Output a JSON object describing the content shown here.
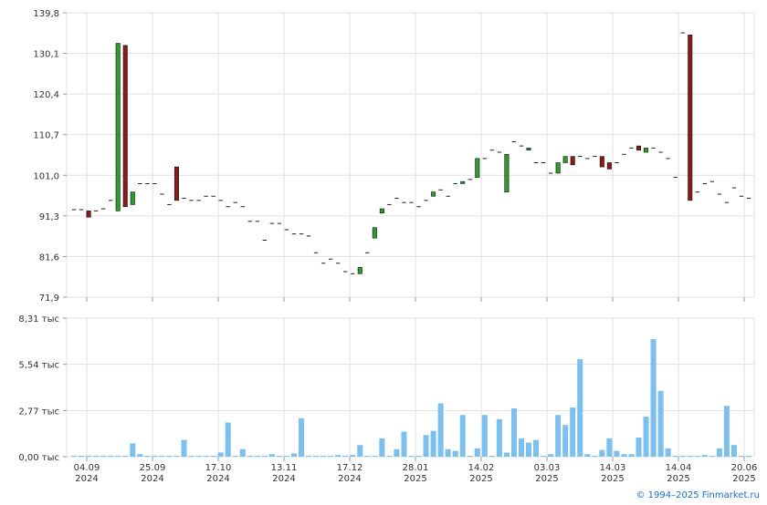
{
  "chart_data": {
    "type": "ohlc+volume",
    "price": {
      "y_ticks": [
        "139,8",
        "130,1",
        "120,4",
        "110,7",
        "101,0",
        "91,3",
        "81,6",
        "71,9"
      ],
      "ylim": [
        71.9,
        139.8
      ],
      "grid": true,
      "bars": [
        {
          "o": 92.8,
          "c": 92.8
        },
        {
          "o": 92.8,
          "c": 92.8
        },
        {
          "o": 92.5,
          "c": 91.0
        },
        {
          "o": 92.5,
          "c": 92.5
        },
        {
          "o": 93.0,
          "c": 93.0
        },
        {
          "o": 95.0,
          "c": 95.0
        },
        {
          "o": 92.5,
          "c": 132.5
        },
        {
          "o": 132.0,
          "c": 93.5
        },
        {
          "o": 94.0,
          "c": 97.0
        },
        {
          "o": 99.0,
          "c": 99.0
        },
        {
          "o": 99.0,
          "c": 99.0
        },
        {
          "o": 99.0,
          "c": 99.0
        },
        {
          "o": 96.5,
          "c": 96.5
        },
        {
          "o": 94.0,
          "c": 94.0
        },
        {
          "o": 103.0,
          "c": 95.0
        },
        {
          "o": 95.5,
          "c": 95.5
        },
        {
          "o": 95.0,
          "c": 95.0
        },
        {
          "o": 95.0,
          "c": 95.0
        },
        {
          "o": 96.0,
          "c": 96.0
        },
        {
          "o": 96.0,
          "c": 96.0
        },
        {
          "o": 95.0,
          "c": 95.0
        },
        {
          "o": 93.5,
          "c": 93.5
        },
        {
          "o": 94.5,
          "c": 94.5
        },
        {
          "o": 93.5,
          "c": 93.5
        },
        {
          "o": 90.0,
          "c": 90.0
        },
        {
          "o": 90.0,
          "c": 90.0
        },
        {
          "o": 85.5,
          "c": 85.5
        },
        {
          "o": 89.5,
          "c": 89.5
        },
        {
          "o": 89.5,
          "c": 89.5
        },
        {
          "o": 88.0,
          "c": 88.0
        },
        {
          "o": 87.0,
          "c": 87.0
        },
        {
          "o": 87.0,
          "c": 87.0
        },
        {
          "o": 86.5,
          "c": 86.5
        },
        {
          "o": 82.5,
          "c": 82.5
        },
        {
          "o": 80.0,
          "c": 80.0
        },
        {
          "o": 81.0,
          "c": 81.0
        },
        {
          "o": 80.0,
          "c": 80.0
        },
        {
          "o": 78.0,
          "c": 78.0
        },
        {
          "o": 77.5,
          "c": 77.5
        },
        {
          "o": 77.5,
          "c": 79.0
        },
        {
          "o": 82.5,
          "c": 82.5
        },
        {
          "o": 86.0,
          "c": 88.5
        },
        {
          "o": 92.0,
          "c": 93.0
        },
        {
          "o": 94.0,
          "c": 94.0
        },
        {
          "o": 95.5,
          "c": 95.5
        },
        {
          "o": 94.5,
          "c": 94.5
        },
        {
          "o": 94.5,
          "c": 94.5
        },
        {
          "o": 93.5,
          "c": 93.5
        },
        {
          "o": 95.0,
          "c": 95.0
        },
        {
          "o": 96.0,
          "c": 97.0
        },
        {
          "o": 97.5,
          "c": 97.5
        },
        {
          "o": 96.0,
          "c": 96.0
        },
        {
          "o": 99.0,
          "c": 99.0
        },
        {
          "o": 99.0,
          "c": 99.5
        },
        {
          "o": 100.0,
          "c": 100.0
        },
        {
          "o": 100.5,
          "c": 105.0
        },
        {
          "o": 105.0,
          "c": 105.0
        },
        {
          "o": 107.0,
          "c": 107.0
        },
        {
          "o": 106.5,
          "c": 106.5
        },
        {
          "o": 97.0,
          "c": 106.0
        },
        {
          "o": 109.0,
          "c": 109.0
        },
        {
          "o": 108.0,
          "c": 108.0
        },
        {
          "o": 107.0,
          "c": 107.5
        },
        {
          "o": 104.0,
          "c": 104.0
        },
        {
          "o": 104.0,
          "c": 104.0
        },
        {
          "o": 101.5,
          "c": 101.5
        },
        {
          "o": 101.5,
          "c": 104.0
        },
        {
          "o": 104.0,
          "c": 105.5
        },
        {
          "o": 105.5,
          "c": 103.5
        },
        {
          "o": 105.5,
          "c": 105.5
        },
        {
          "o": 105.0,
          "c": 105.0
        },
        {
          "o": 105.5,
          "c": 105.5
        },
        {
          "o": 105.5,
          "c": 103.0
        },
        {
          "o": 104.0,
          "c": 102.5
        },
        {
          "o": 104.0,
          "c": 104.0
        },
        {
          "o": 106.0,
          "c": 106.0
        },
        {
          "o": 107.5,
          "c": 107.5
        },
        {
          "o": 108.0,
          "c": 107.0
        },
        {
          "o": 106.5,
          "c": 107.5
        },
        {
          "o": 107.5,
          "c": 107.5
        },
        {
          "o": 106.5,
          "c": 106.5
        },
        {
          "o": 105.0,
          "c": 105.0
        },
        {
          "o": 100.5,
          "c": 100.5
        },
        {
          "o": 135.0,
          "c": 135.0
        },
        {
          "o": 134.5,
          "c": 95.0
        },
        {
          "o": 97.0,
          "c": 97.0
        },
        {
          "o": 99.0,
          "c": 99.0
        },
        {
          "o": 99.5,
          "c": 99.5
        },
        {
          "o": 96.5,
          "c": 96.5
        },
        {
          "o": 94.5,
          "c": 94.5
        },
        {
          "o": 98.0,
          "c": 98.0
        },
        {
          "o": 96.0,
          "c": 96.0
        },
        {
          "o": 95.5,
          "c": 95.5
        }
      ]
    },
    "volume": {
      "y_ticks": [
        "8,31 тыс",
        "5,54 тыс",
        "2,77 тыс",
        "0,00 тыс"
      ],
      "ylim": [
        0,
        8.31
      ],
      "unit": "тыс",
      "values": [
        0.05,
        0.05,
        0.05,
        0.05,
        0.05,
        0.05,
        0.05,
        0.05,
        0.8,
        0.15,
        0.05,
        0.05,
        0.05,
        0.05,
        0.05,
        1.0,
        0.05,
        0.05,
        0.05,
        0.05,
        0.25,
        2.05,
        0.05,
        0.45,
        0.05,
        0.05,
        0.05,
        0.15,
        0.05,
        0.05,
        0.2,
        2.3,
        0.05,
        0.05,
        0.05,
        0.05,
        0.1,
        0.05,
        0.1,
        0.7,
        0.05,
        0.05,
        1.1,
        0.05,
        0.45,
        1.5,
        0.05,
        0.05,
        1.3,
        1.55,
        3.2,
        0.45,
        0.35,
        2.5,
        0.05,
        0.5,
        2.5,
        0.05,
        2.25,
        0.25,
        2.9,
        1.1,
        0.85,
        1.0,
        0.05,
        0.15,
        2.5,
        1.9,
        2.95,
        5.85,
        0.15,
        0.05,
        0.4,
        1.1,
        0.35,
        0.15,
        0.15,
        1.15,
        2.4,
        7.05,
        3.95,
        0.5,
        0.05,
        0.05,
        0.05,
        0.05,
        0.1,
        0.05,
        0.5,
        3.05,
        0.7,
        0.05,
        0.05
      ]
    },
    "x_ticks": [
      {
        "date": "04.09",
        "year": "2024"
      },
      {
        "date": "25.09",
        "year": "2024"
      },
      {
        "date": "17.10",
        "year": "2024"
      },
      {
        "date": "13.11",
        "year": "2024"
      },
      {
        "date": "17.12",
        "year": "2024"
      },
      {
        "date": "28.01",
        "year": "2025"
      },
      {
        "date": "14.02",
        "year": "2025"
      },
      {
        "date": "03.03",
        "year": "2025"
      },
      {
        "date": "14.03",
        "year": "2025"
      },
      {
        "date": "14.04",
        "year": "2025"
      },
      {
        "date": "20.06",
        "year": "2025"
      }
    ],
    "colors": {
      "up_fill": "#2e9b2e",
      "down_fill": "#8b1a1a",
      "volume_fill": "#7cc0ee",
      "grid": "#e1e1e1",
      "axis": "#999999"
    }
  },
  "footer": {
    "credit": "© 1994–2025 Finmarket.ru"
  }
}
